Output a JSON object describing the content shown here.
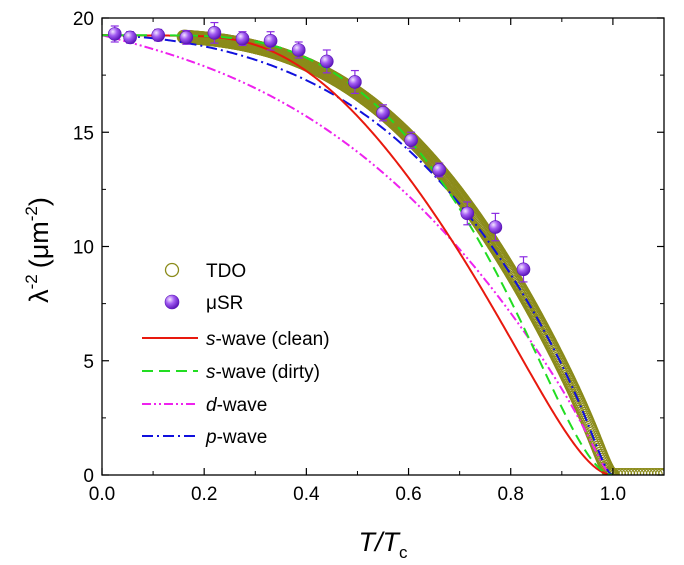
{
  "chart_data": {
    "type": "line",
    "xlabel": {
      "main": "T/T",
      "sub": "c"
    },
    "ylabel": {
      "main": "λ",
      "sup": "-2",
      "unit": "(μm",
      "unit_sup": "-2",
      "close": ")"
    },
    "xlim": [
      0.0,
      1.1
    ],
    "ylim": [
      0,
      20
    ],
    "xticks": [
      0.0,
      0.2,
      0.4,
      0.6,
      0.8,
      1.0
    ],
    "xtick_labels": [
      "0.0",
      "0.2",
      "0.4",
      "0.6",
      "0.8",
      "1.0"
    ],
    "yticks": [
      0,
      5,
      10,
      15,
      20
    ],
    "ytick_labels": [
      "0",
      "5",
      "10",
      "15",
      "20"
    ],
    "grid": false,
    "legend_position": "center-left",
    "lambda0_inv_sq": 19.25,
    "series": [
      {
        "key": "tdo",
        "name": "TDO",
        "kind": "open-circles",
        "color": "#8b8b1a"
      },
      {
        "key": "musr",
        "name": "μSR",
        "kind": "filled-spheres-with-errorbars",
        "color": "#8a2be2"
      },
      {
        "key": "s_clean",
        "name_italic": "s",
        "name_rest": "-wave (clean)",
        "kind": "solid-line",
        "color": "#e8190e"
      },
      {
        "key": "s_dirty",
        "name_italic": "s",
        "name_rest": "-wave (dirty)",
        "kind": "dashed-line",
        "color": "#22dd22"
      },
      {
        "key": "d_wave",
        "name_italic": "d",
        "name_rest": "-wave",
        "kind": "dash-dot-dot-line",
        "color": "#ee22ee"
      },
      {
        "key": "p_wave",
        "name_italic": "p",
        "name_rest": "-wave",
        "kind": "dash-dot-line",
        "color": "#1010dd"
      }
    ],
    "musr_points": [
      {
        "x": 0.025,
        "y": 19.3,
        "err": 0.35
      },
      {
        "x": 0.055,
        "y": 19.15,
        "err": 0.25
      },
      {
        "x": 0.11,
        "y": 19.25,
        "err": 0.25
      },
      {
        "x": 0.165,
        "y": 19.15,
        "err": 0.3
      },
      {
        "x": 0.22,
        "y": 19.35,
        "err": 0.45
      },
      {
        "x": 0.275,
        "y": 19.1,
        "err": 0.3
      },
      {
        "x": 0.33,
        "y": 19.0,
        "err": 0.4
      },
      {
        "x": 0.385,
        "y": 18.6,
        "err": 0.35
      },
      {
        "x": 0.44,
        "y": 18.1,
        "err": 0.5
      },
      {
        "x": 0.495,
        "y": 17.2,
        "err": 0.5
      },
      {
        "x": 0.55,
        "y": 15.85,
        "err": 0.35
      },
      {
        "x": 0.605,
        "y": 14.65,
        "err": 0.35
      },
      {
        "x": 0.66,
        "y": 13.35,
        "err": 0.3
      },
      {
        "x": 0.715,
        "y": 11.45,
        "err": 0.5
      },
      {
        "x": 0.77,
        "y": 10.85,
        "err": 0.6
      },
      {
        "x": 0.825,
        "y": 9.0,
        "err": 0.55
      }
    ]
  }
}
